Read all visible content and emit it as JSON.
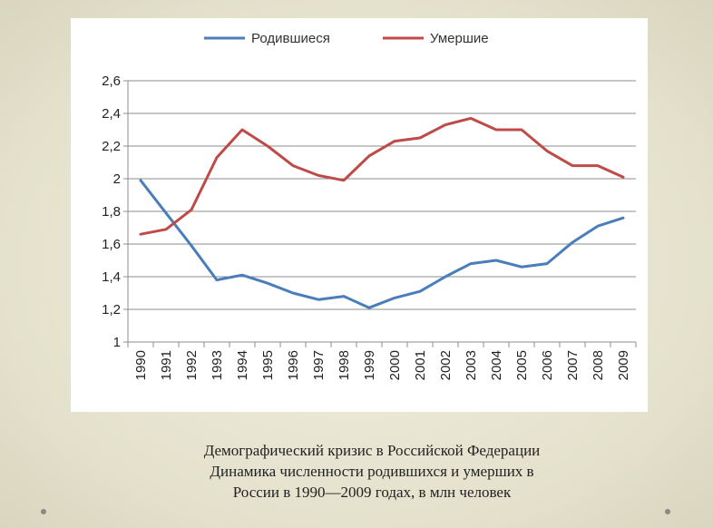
{
  "caption": {
    "line1": "Демографический кризис в Российской Федерации",
    "line2": "Динамика численности родившихся и умерших в",
    "line3": "России в 1990—2009 годах, в млн человек"
  },
  "chart_data": {
    "type": "line",
    "x": [
      "1990",
      "1991",
      "1992",
      "1993",
      "1994",
      "1995",
      "1996",
      "1997",
      "1998",
      "1999",
      "2000",
      "2001",
      "2002",
      "2003",
      "2004",
      "2005",
      "2006",
      "2007",
      "2008",
      "2009"
    ],
    "series": [
      {
        "name": "Родившиеся",
        "color": "#4a7ebb",
        "values": [
          1.99,
          1.79,
          1.59,
          1.38,
          1.41,
          1.36,
          1.3,
          1.26,
          1.28,
          1.21,
          1.27,
          1.31,
          1.4,
          1.48,
          1.5,
          1.46,
          1.48,
          1.61,
          1.71,
          1.76
        ]
      },
      {
        "name": "Умершие",
        "color": "#be4b48",
        "values": [
          1.66,
          1.69,
          1.81,
          2.13,
          2.3,
          2.2,
          2.08,
          2.02,
          1.99,
          2.14,
          2.23,
          2.25,
          2.33,
          2.37,
          2.3,
          2.3,
          2.17,
          2.08,
          2.08,
          2.01
        ]
      }
    ],
    "y_ticks": [
      "1",
      "1,2",
      "1,4",
      "1,6",
      "1,8",
      "2",
      "2,2",
      "2,4",
      "2,6"
    ],
    "ylim": [
      1,
      2.6
    ],
    "grid": true,
    "legend": "top"
  }
}
